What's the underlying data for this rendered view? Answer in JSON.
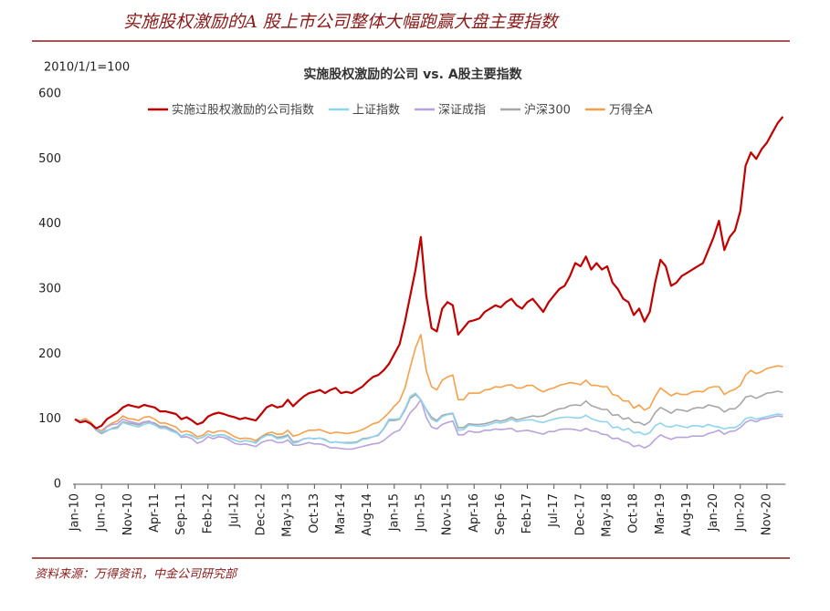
{
  "header": {
    "title": "实施股权激励的A 股上市公司整体大幅跑赢大盘主要指数"
  },
  "chart_data": {
    "type": "line",
    "title": "实施股权激励的公司 vs. A股主要指数",
    "y_label": "2010/1/1=100",
    "ylim": [
      0,
      600
    ],
    "yticks": [
      0,
      100,
      200,
      300,
      400,
      500,
      600
    ],
    "categories": [
      "Jan-10",
      null,
      null,
      null,
      null,
      "Jun-10",
      null,
      null,
      null,
      null,
      "Nov-10",
      null,
      null,
      null,
      null,
      "Apr-11",
      null,
      null,
      null,
      null,
      "Sep-11",
      null,
      null,
      null,
      null,
      "Feb-12",
      null,
      null,
      null,
      null,
      "Jul-12",
      null,
      null,
      null,
      null,
      "Dec-12",
      null,
      null,
      null,
      null,
      "May-13",
      null,
      null,
      null,
      null,
      "Oct-13",
      null,
      null,
      null,
      null,
      "Mar-14",
      null,
      null,
      null,
      null,
      "Aug-14",
      null,
      null,
      null,
      null,
      "Jan-15",
      null,
      null,
      null,
      null,
      "Jun-15",
      null,
      null,
      null,
      null,
      "Nov-15",
      null,
      null,
      null,
      null,
      "Apr-16",
      null,
      null,
      null,
      null,
      "Sep-16",
      null,
      null,
      null,
      null,
      "Feb-17",
      null,
      null,
      null,
      null,
      "Jul-17",
      null,
      null,
      null,
      null,
      "Dec-17",
      null,
      null,
      null,
      null,
      "May-18",
      null,
      null,
      null,
      null,
      "Oct-18",
      null,
      null,
      null,
      null,
      "Mar-19",
      null,
      null,
      null,
      null,
      "Aug-19",
      null,
      null,
      null,
      null,
      "Jan-20",
      null,
      null,
      null,
      null,
      "Jun-20",
      null,
      null,
      null,
      null,
      "Nov-20",
      null,
      null,
      null
    ],
    "series": [
      {
        "name": "实施过股权激励的公司指数",
        "color": "#c00000",
        "values": [
          100,
          95,
          97,
          93,
          86,
          90,
          100,
          105,
          110,
          118,
          122,
          120,
          118,
          122,
          120,
          118,
          112,
          112,
          110,
          108,
          100,
          103,
          98,
          92,
          95,
          104,
          108,
          110,
          108,
          105,
          103,
          100,
          102,
          100,
          98,
          108,
          118,
          122,
          118,
          120,
          130,
          120,
          128,
          135,
          140,
          142,
          145,
          140,
          145,
          148,
          140,
          142,
          140,
          145,
          150,
          158,
          165,
          168,
          175,
          185,
          200,
          215,
          250,
          290,
          330,
          380,
          290,
          240,
          235,
          270,
          280,
          275,
          230,
          240,
          250,
          252,
          255,
          265,
          270,
          275,
          272,
          280,
          285,
          275,
          270,
          280,
          285,
          275,
          265,
          280,
          290,
          300,
          305,
          320,
          340,
          335,
          350,
          330,
          340,
          330,
          335,
          310,
          300,
          285,
          280,
          260,
          270,
          250,
          265,
          310,
          345,
          335,
          305,
          310,
          320,
          325,
          330,
          335,
          340,
          360,
          380,
          405,
          360,
          380,
          390,
          420,
          490,
          510,
          500,
          515,
          525,
          540,
          555,
          565
        ]
      },
      {
        "name": "上证指数",
        "color": "#8fd3ee",
        "values": [
          100,
          97,
          98,
          93,
          84,
          80,
          83,
          85,
          86,
          95,
          92,
          90,
          88,
          92,
          94,
          91,
          86,
          86,
          82,
          79,
          74,
          77,
          74,
          70,
          72,
          77,
          74,
          76,
          76,
          71,
          68,
          65,
          67,
          66,
          63,
          71,
          75,
          75,
          70,
          71,
          74,
          63,
          65,
          70,
          71,
          70,
          71,
          68,
          64,
          65,
          64,
          63,
          63,
          64,
          69,
          70,
          73,
          76,
          86,
          100,
          100,
          101,
          116,
          135,
          140,
          130,
          114,
          100,
          96,
          104,
          107,
          108,
          83,
          84,
          91,
          90,
          89,
          90,
          92,
          95,
          94,
          96,
          100,
          96,
          98,
          99,
          99,
          96,
          95,
          98,
          100,
          102,
          103,
          103,
          102,
          102,
          106,
          101,
          98,
          96,
          96,
          87,
          88,
          83,
          86,
          79,
          80,
          76,
          79,
          90,
          94,
          89,
          88,
          91,
          89,
          87,
          90,
          90,
          88,
          92,
          89,
          88,
          85,
          87,
          87,
          92,
          101,
          103,
          100,
          102,
          104,
          106,
          108,
          107
        ]
      },
      {
        "name": "深证成指",
        "color": "#b9a3dc",
        "values": [
          100,
          97,
          98,
          93,
          85,
          80,
          88,
          92,
          93,
          100,
          97,
          95,
          93,
          96,
          97,
          92,
          87,
          87,
          83,
          80,
          72,
          73,
          70,
          63,
          66,
          73,
          70,
          73,
          72,
          68,
          63,
          61,
          62,
          60,
          58,
          64,
          67,
          68,
          64,
          64,
          68,
          60,
          60,
          62,
          64,
          62,
          62,
          60,
          56,
          56,
          55,
          54,
          54,
          56,
          58,
          60,
          62,
          63,
          67,
          74,
          80,
          83,
          95,
          110,
          118,
          130,
          103,
          88,
          85,
          92,
          95,
          97,
          76,
          76,
          82,
          80,
          80,
          83,
          83,
          85,
          84,
          85,
          86,
          81,
          82,
          83,
          81,
          79,
          77,
          81,
          81,
          84,
          85,
          85,
          84,
          82,
          86,
          82,
          81,
          77,
          76,
          70,
          71,
          66,
          64,
          58,
          60,
          56,
          60,
          69,
          76,
          72,
          69,
          72,
          72,
          72,
          74,
          74,
          74,
          78,
          80,
          83,
          77,
          81,
          82,
          87,
          95,
          99,
          96,
          100,
          101,
          103,
          105,
          104
        ]
      },
      {
        "name": "沪深300",
        "color": "#a6a6a6",
        "values": [
          100,
          97,
          98,
          92,
          83,
          78,
          82,
          86,
          88,
          96,
          94,
          93,
          91,
          95,
          96,
          94,
          89,
          89,
          85,
          81,
          74,
          77,
          75,
          70,
          72,
          77,
          74,
          76,
          76,
          72,
          68,
          65,
          67,
          66,
          64,
          72,
          76,
          76,
          72,
          73,
          76,
          65,
          66,
          70,
          71,
          70,
          71,
          69,
          64,
          65,
          64,
          64,
          64,
          65,
          70,
          71,
          73,
          75,
          85,
          98,
          98,
          100,
          114,
          132,
          138,
          130,
          115,
          103,
          98,
          106,
          108,
          109,
          87,
          87,
          93,
          92,
          92,
          93,
          95,
          98,
          97,
          99,
          103,
          99,
          101,
          103,
          105,
          104,
          105,
          109,
          113,
          116,
          117,
          121,
          122,
          121,
          128,
          121,
          118,
          115,
          115,
          106,
          107,
          100,
          102,
          95,
          95,
          91,
          96,
          110,
          118,
          114,
          109,
          115,
          114,
          112,
          116,
          118,
          117,
          122,
          120,
          118,
          111,
          116,
          116,
          123,
          134,
          136,
          132,
          136,
          140,
          141,
          143,
          141
        ]
      },
      {
        "name": "万得全A",
        "color": "#f5a04a",
        "values": [
          100,
          98,
          101,
          95,
          86,
          82,
          89,
          94,
          97,
          105,
          101,
          100,
          98,
          103,
          104,
          100,
          94,
          94,
          91,
          88,
          80,
          82,
          79,
          73,
          75,
          82,
          79,
          82,
          82,
          78,
          73,
          70,
          71,
          70,
          67,
          73,
          78,
          80,
          77,
          77,
          83,
          74,
          76,
          80,
          83,
          83,
          84,
          81,
          78,
          80,
          79,
          78,
          79,
          81,
          84,
          88,
          93,
          95,
          102,
          110,
          120,
          128,
          148,
          180,
          210,
          230,
          175,
          150,
          145,
          160,
          165,
          168,
          130,
          130,
          140,
          140,
          140,
          145,
          146,
          150,
          149,
          152,
          153,
          148,
          148,
          152,
          152,
          146,
          142,
          146,
          148,
          152,
          154,
          156,
          155,
          153,
          160,
          152,
          152,
          150,
          150,
          138,
          136,
          128,
          128,
          117,
          122,
          114,
          118,
          135,
          148,
          142,
          136,
          140,
          138,
          138,
          142,
          143,
          142,
          148,
          150,
          150,
          138,
          143,
          146,
          152,
          168,
          175,
          170,
          173,
          178,
          180,
          182,
          181
        ]
      }
    ]
  },
  "footer": {
    "source": "资料来源：万得资讯，中金公司研究部"
  }
}
